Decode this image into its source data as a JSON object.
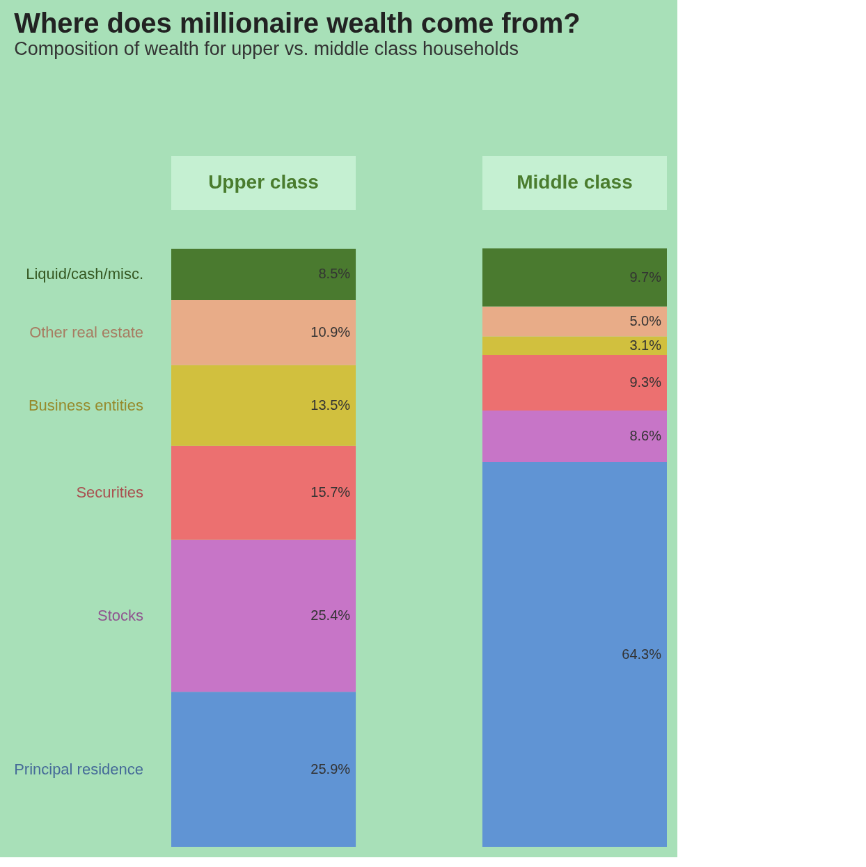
{
  "chart_data": {
    "type": "bar",
    "title": "Where does millionaire wealth come from?",
    "subtitle": "Composition of wealth for upper vs. middle class households",
    "stacked": true,
    "categories": [
      "Upper class",
      "Middle class"
    ],
    "series": [
      {
        "name": "Principal residence",
        "color": "#6094d4",
        "values": [
          25.9,
          64.3
        ],
        "value_labels": [
          "25.9%",
          "64.3%"
        ]
      },
      {
        "name": "Stocks",
        "color": "#c775c7",
        "values": [
          25.4,
          8.6
        ],
        "value_labels": [
          "25.4%",
          "8.6%"
        ]
      },
      {
        "name": "Securities",
        "color": "#ec7070",
        "values": [
          15.7,
          9.3
        ],
        "value_labels": [
          "15.7%",
          "9.3%"
        ]
      },
      {
        "name": "Business entities",
        "color": "#d1c03e",
        "values": [
          13.5,
          3.1
        ],
        "value_labels": [
          "13.5%",
          "3.1%"
        ]
      },
      {
        "name": "Other real estate",
        "color": "#e8ac88",
        "values": [
          10.9,
          5.0
        ],
        "value_labels": [
          "10.9%",
          "5.0%"
        ]
      },
      {
        "name": "Liquid/cash/misc.",
        "color": "#4a7a2f",
        "values": [
          8.5,
          9.7
        ],
        "value_labels": [
          "8.5%",
          "9.7%"
        ]
      }
    ]
  }
}
